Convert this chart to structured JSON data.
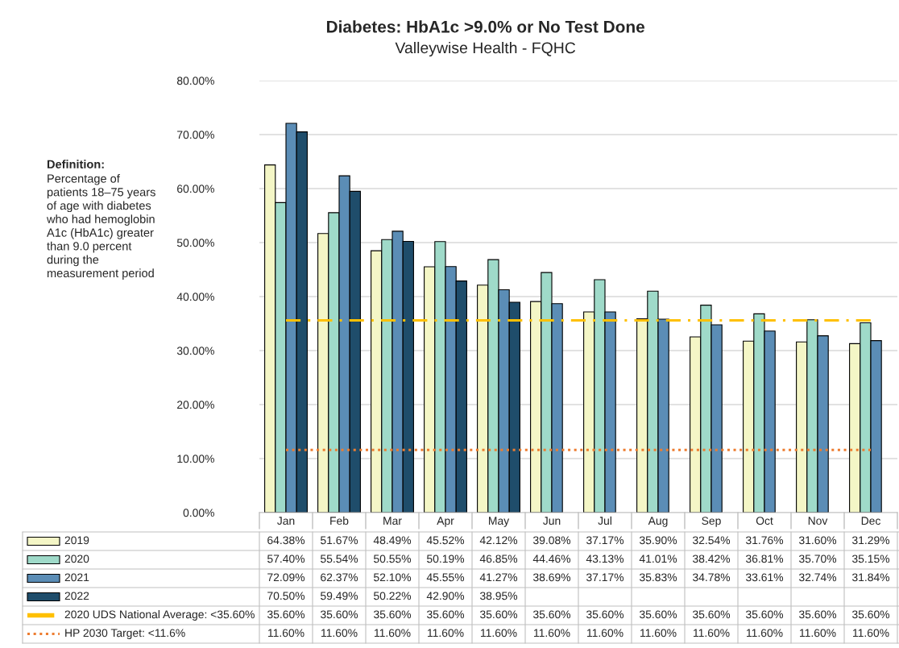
{
  "chart_data": {
    "type": "bar",
    "title": "Diabetes: HbA1c >9.0% or No Test Done",
    "subtitle": "Valleywise Health - FQHC",
    "annotations": [
      "Definition:",
      "Percentage of\npatients 18–75 years\nof age with diabetes\nwho had hemoglobin\nA1c (HbA1c) greater\nthan 9.0 percent\nduring the\nmeasurement period"
    ],
    "categories": [
      "Jan",
      "Feb",
      "Mar",
      "Apr",
      "May",
      "Jun",
      "Jul",
      "Aug",
      "Sep",
      "Oct",
      "Nov",
      "Dec"
    ],
    "series": [
      {
        "name": "2019",
        "color": "#f4f6c6",
        "values": [
          64.38,
          51.67,
          48.49,
          45.52,
          42.12,
          39.08,
          37.17,
          35.9,
          32.54,
          31.76,
          31.6,
          31.29
        ],
        "value_labels": [
          "64.38%",
          "51.67%",
          "48.49%",
          "45.52%",
          "42.12%",
          "39.08%",
          "37.17%",
          "35.90%",
          "32.54%",
          "31.76%",
          "31.60%",
          "31.29%"
        ]
      },
      {
        "name": "2020",
        "color": "#9fdac9",
        "values": [
          57.4,
          55.54,
          50.55,
          50.19,
          46.85,
          44.46,
          43.13,
          41.01,
          38.42,
          36.81,
          35.7,
          35.15
        ],
        "value_labels": [
          "57.40%",
          "55.54%",
          "50.55%",
          "50.19%",
          "46.85%",
          "44.46%",
          "43.13%",
          "41.01%",
          "38.42%",
          "36.81%",
          "35.70%",
          "35.15%"
        ]
      },
      {
        "name": "2021",
        "color": "#5b8db6",
        "values": [
          72.09,
          62.37,
          52.1,
          45.55,
          41.27,
          38.69,
          37.17,
          35.83,
          34.78,
          33.61,
          32.74,
          31.84
        ],
        "value_labels": [
          "72.09%",
          "62.37%",
          "52.10%",
          "45.55%",
          "41.27%",
          "38.69%",
          "37.17%",
          "35.83%",
          "34.78%",
          "33.61%",
          "32.74%",
          "31.84%"
        ]
      },
      {
        "name": "2022",
        "color": "#1f4d6b",
        "values": [
          70.5,
          59.49,
          50.22,
          42.9,
          38.95,
          null,
          null,
          null,
          null,
          null,
          null,
          null
        ],
        "value_labels": [
          "70.50%",
          "59.49%",
          "50.22%",
          "42.90%",
          "38.95%",
          null,
          null,
          null,
          null,
          null,
          null,
          null
        ]
      },
      {
        "name": "2020 UDS National Average: <35.60%",
        "type": "line",
        "line_style": "dashed",
        "color": "#ffc000",
        "values": [
          35.6,
          35.6,
          35.6,
          35.6,
          35.6,
          35.6,
          35.6,
          35.6,
          35.6,
          35.6,
          35.6,
          35.6
        ],
        "value_labels": [
          "35.60%",
          "35.60%",
          "35.60%",
          "35.60%",
          "35.60%",
          "35.60%",
          "35.60%",
          "35.60%",
          "35.60%",
          "35.60%",
          "35.60%",
          "35.60%"
        ]
      },
      {
        "name": "HP 2030 Target: <11.6%",
        "type": "line",
        "line_style": "dotted",
        "color": "#ed7d31",
        "values": [
          11.6,
          11.6,
          11.6,
          11.6,
          11.6,
          11.6,
          11.6,
          11.6,
          11.6,
          11.6,
          11.6,
          11.6
        ],
        "value_labels": [
          "11.60%",
          "11.60%",
          "11.60%",
          "11.60%",
          "11.60%",
          "11.60%",
          "11.60%",
          "11.60%",
          "11.60%",
          "11.60%",
          "11.60%",
          "11.60%"
        ]
      }
    ],
    "ylim": [
      0,
      80
    ],
    "yticks": [
      {
        "value": 0,
        "label": "0.00%"
      },
      {
        "value": 10,
        "label": "10.00%"
      },
      {
        "value": 20,
        "label": "20.00%"
      },
      {
        "value": 30,
        "label": "30.00%"
      },
      {
        "value": 40,
        "label": "40.00%"
      },
      {
        "value": 50,
        "label": "50.00%"
      },
      {
        "value": 60,
        "label": "60.00%"
      },
      {
        "value": 70,
        "label": "70.00%"
      },
      {
        "value": 80,
        "label": "80.00%"
      }
    ],
    "grid": "y",
    "legend": "bottom",
    "marker": "none"
  }
}
